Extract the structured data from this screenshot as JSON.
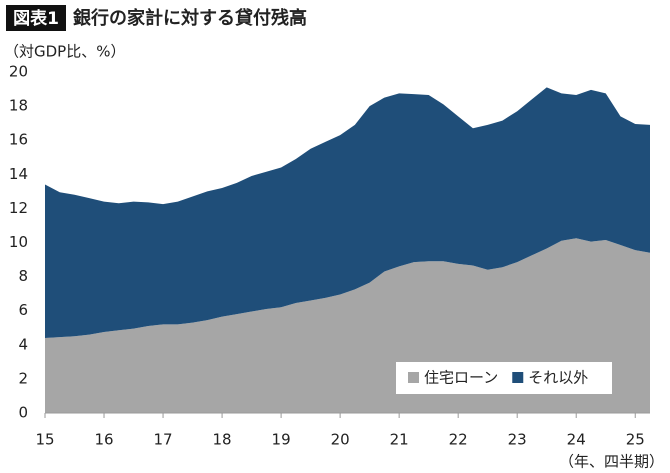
{
  "chart_data": {
    "type": "stacked-area",
    "badge": "図表1",
    "title": "銀行の家計に対する貸付残高",
    "y_label": "（対GDP比、%）",
    "x_label": "（年、四半期）",
    "x": [
      15,
      15.25,
      15.5,
      15.75,
      16,
      16.25,
      16.5,
      16.75,
      17,
      17.25,
      17.5,
      17.75,
      18,
      18.25,
      18.5,
      18.75,
      19,
      19.25,
      19.5,
      19.75,
      20,
      20.25,
      20.5,
      20.75,
      21,
      21.25,
      21.5,
      21.75,
      22,
      22.25,
      22.5,
      22.75,
      23,
      23.25,
      23.5,
      23.75,
      24,
      24.25,
      24.5,
      24.75,
      25,
      25.25
    ],
    "series": [
      {
        "name": "住宅ローン",
        "color": "#a6a6a6",
        "values": [
          4.4,
          4.45,
          4.5,
          4.6,
          4.75,
          4.85,
          4.95,
          5.1,
          5.2,
          5.2,
          5.3,
          5.45,
          5.65,
          5.8,
          5.95,
          6.1,
          6.2,
          6.45,
          6.6,
          6.75,
          6.95,
          7.25,
          7.65,
          8.3,
          8.6,
          8.85,
          8.9,
          8.9,
          8.75,
          8.65,
          8.4,
          8.55,
          8.85,
          9.25,
          9.65,
          10.1,
          10.25,
          10.05,
          10.15,
          9.85,
          9.55,
          9.4
        ]
      },
      {
        "name": "それ以外",
        "color": "#1f4e79",
        "values": [
          9.0,
          8.5,
          8.3,
          8.0,
          7.65,
          7.45,
          7.45,
          7.25,
          7.05,
          7.2,
          7.4,
          7.55,
          7.55,
          7.7,
          7.95,
          8.05,
          8.2,
          8.45,
          8.9,
          9.15,
          9.35,
          9.65,
          10.35,
          10.2,
          10.15,
          9.85,
          9.75,
          9.2,
          8.65,
          8.05,
          8.5,
          8.6,
          8.85,
          9.15,
          9.45,
          8.65,
          8.4,
          8.9,
          8.6,
          7.55,
          7.4,
          7.5
        ]
      }
    ],
    "xlim": [
      15,
      25.25
    ],
    "xticks": [
      15,
      16,
      17,
      18,
      19,
      20,
      21,
      22,
      23,
      24,
      25
    ],
    "ylim": [
      0,
      20
    ],
    "yticks": [
      0,
      2,
      4,
      6,
      8,
      10,
      12,
      14,
      16,
      18,
      20
    ],
    "legend": "lower-right"
  }
}
